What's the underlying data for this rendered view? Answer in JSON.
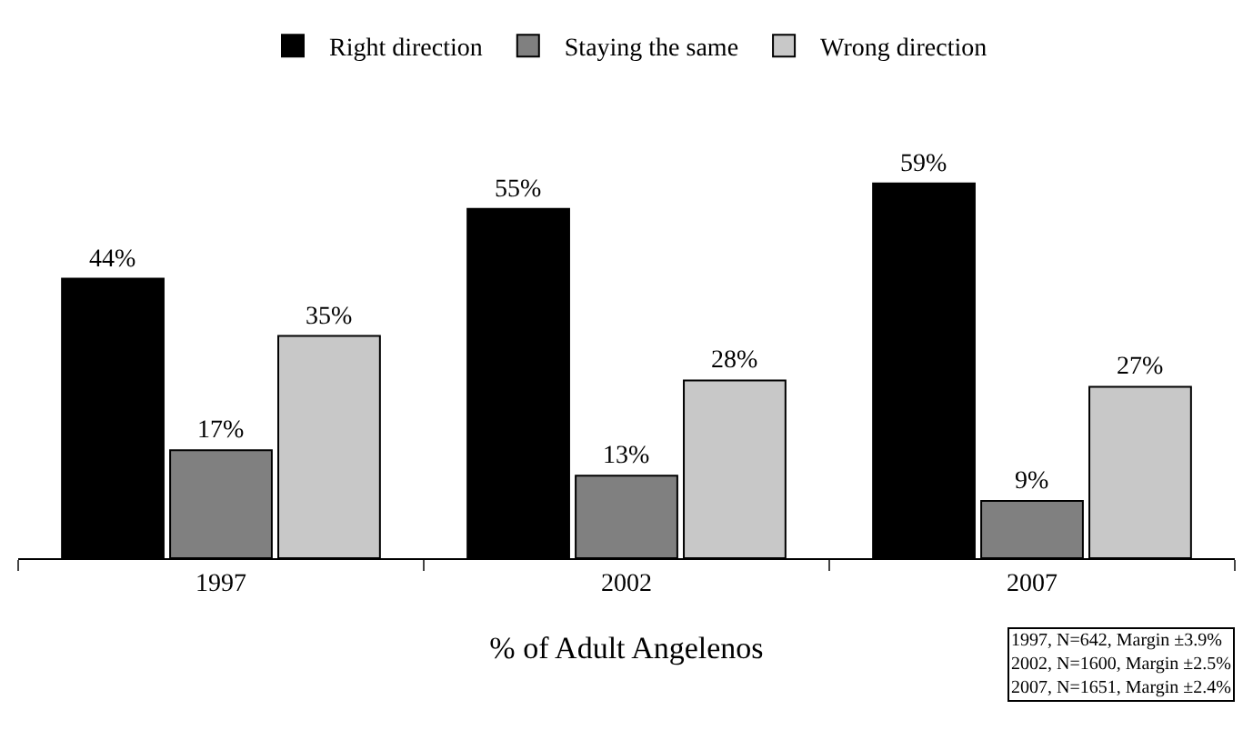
{
  "chart_data": {
    "type": "bar",
    "xlabel": "% of Adult Angelenos",
    "categories": [
      "1997",
      "2002",
      "2007"
    ],
    "series": [
      {
        "name": "Right direction",
        "color": "#000000",
        "values": [
          44,
          55,
          59
        ],
        "value_labels": [
          "44%",
          "55%",
          "59%"
        ]
      },
      {
        "name": "Staying the same",
        "color": "#808080",
        "values": [
          17,
          13,
          9
        ],
        "value_labels": [
          "17%",
          "13%",
          "9%"
        ]
      },
      {
        "name": "Wrong direction",
        "color": "#c8c8c8",
        "values": [
          35,
          28,
          27
        ],
        "value_labels": [
          "35%",
          "28%",
          "27%"
        ]
      }
    ],
    "annotations": [
      "1997, N=642, Margin ±3.9%\n2002, N=1600, Margin ±2.5%\n2007, N=1651, Margin ±2.4%"
    ],
    "legend": "top"
  }
}
